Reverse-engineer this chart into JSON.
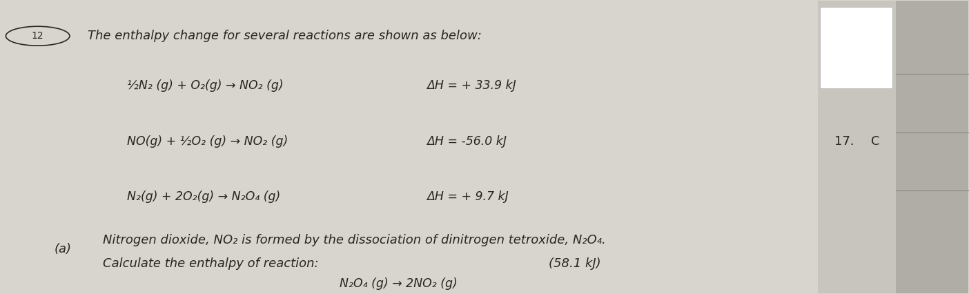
{
  "bg_color": "#d8d4ce",
  "page_bg": "#e8e4de",
  "title_text": "The enthalpy change for several reactions are shown as below:",
  "question_number": "12",
  "reaction1_lhs": "½N₂ (g) + O₂(g) → NO₂ (g)",
  "reaction1_dH": "ΔH = + 33.9 kJ",
  "reaction2_lhs": "NO(g) + ½O₂ (g) → NO₂ (g)",
  "reaction2_dH": "ΔH = -56.0 kJ",
  "reaction3_lhs": "N₂(g) + 2O₂(g) → N₂O₄ (g)",
  "reaction3_dH": "ΔH = + 9.7 kJ",
  "part_a_label": "(a)",
  "part_a_text1": "Nitrogen dioxide, NO₂ is formed by the dissociation of dinitrogen tetroxide, N₂O₄.",
  "part_a_text2": "Calculate the enthalpy of reaction:",
  "answer": "(58.1 kJ)",
  "final_reaction": "N₂O₄ (g) → 2NO₂ (g)",
  "side_number": "17.",
  "side_letter": "C",
  "text_color": "#2a2520",
  "font_size_main": 13,
  "font_size_reactions": 12.5,
  "font_size_part_a": 13
}
